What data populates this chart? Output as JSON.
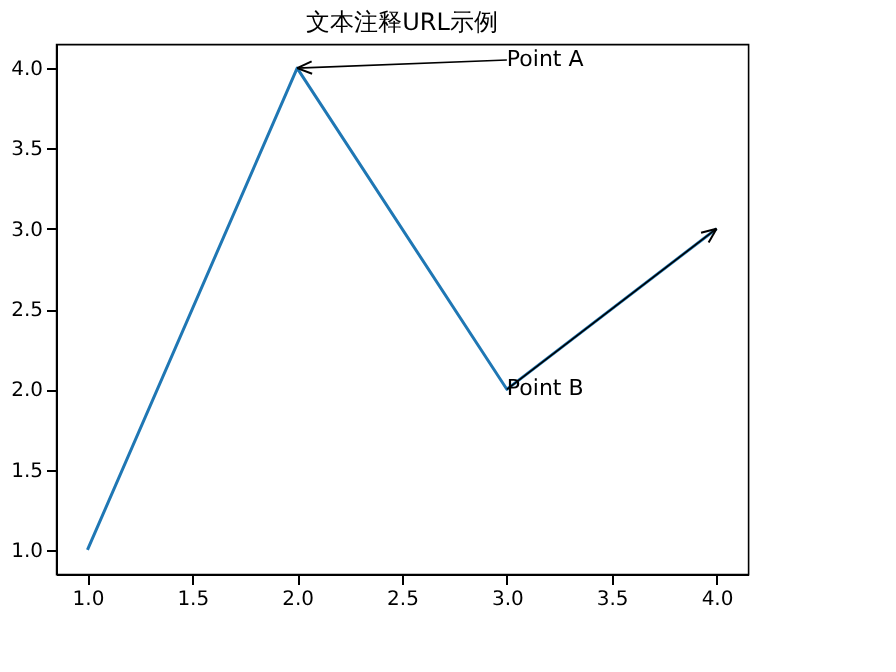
{
  "chart_data": {
    "type": "line",
    "title": "文本注释URL示例",
    "x": [
      1,
      2,
      3,
      4
    ],
    "series": [
      {
        "color": "#1f77b4",
        "values": [
          1,
          4,
          2,
          3
        ]
      }
    ],
    "xlim": [
      0.85,
      4.15
    ],
    "ylim": [
      0.85,
      4.15
    ],
    "xticks": [
      {
        "value": 1,
        "label": "1.0"
      },
      {
        "value": 1.5,
        "label": "1.5"
      },
      {
        "value": 2,
        "label": "2.0"
      },
      {
        "value": 2.5,
        "label": "2.5"
      },
      {
        "value": 3,
        "label": "3.0"
      },
      {
        "value": 3.5,
        "label": "3.5"
      },
      {
        "value": 4,
        "label": "4.0"
      }
    ],
    "yticks": [
      {
        "value": 1,
        "label": "1.0"
      },
      {
        "value": 1.5,
        "label": "1.5"
      },
      {
        "value": 2,
        "label": "2.0"
      },
      {
        "value": 2.5,
        "label": "2.5"
      },
      {
        "value": 3,
        "label": "3.0"
      },
      {
        "value": 3.5,
        "label": "3.5"
      },
      {
        "value": 4,
        "label": "4.0"
      }
    ],
    "annotations": [
      {
        "text": "Point A",
        "x": 2,
        "y": 4
      },
      {
        "text": "Point B",
        "x": 4,
        "y": 3
      }
    ],
    "grid": false,
    "line_style": "solid"
  }
}
